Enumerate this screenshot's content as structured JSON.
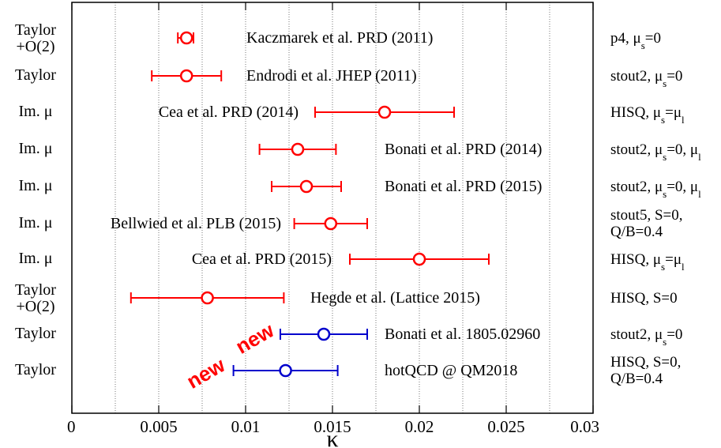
{
  "chart_data": {
    "type": "scatter",
    "xlabel": "κ",
    "xlim": [
      0,
      0.03
    ],
    "x_ticks": [
      "0",
      "0.005",
      "0.01",
      "0.015",
      "0.02",
      "0.025",
      "0.03"
    ],
    "grid": "vertical dotted at x = 0.0025 steps",
    "colors": {
      "previous": "#ff0000",
      "new": "#0000cc",
      "new_tag": "#ff0000"
    },
    "points": [
      {
        "method": "Taylor\n+O(2)",
        "label": "Kaczmarek et al. PRD (2011)",
        "setup": "p4, μ_s=0",
        "x": 0.0066,
        "err_low": 0.0061,
        "err_high": 0.007,
        "series": "previous"
      },
      {
        "method": "Taylor",
        "label": "Endrodi et al. JHEP (2011)",
        "setup": "stout2, μ_s=0",
        "x": 0.0066,
        "err_low": 0.0046,
        "err_high": 0.0086,
        "series": "previous"
      },
      {
        "method": "Im. μ",
        "label": "Cea et al. PRD (2014)",
        "setup": "HISQ, μ_s=μ_l",
        "x": 0.018,
        "err_low": 0.014,
        "err_high": 0.022,
        "series": "previous"
      },
      {
        "method": "Im. μ",
        "label": "Bonati et al. PRD (2014)",
        "setup": "stout2, μ_s=0, μ_l",
        "x": 0.013,
        "err_low": 0.0108,
        "err_high": 0.0152,
        "series": "previous"
      },
      {
        "method": "Im. μ",
        "label": "Bonati et al. PRD (2015)",
        "setup": "stout2, μ_s=0, μ_l",
        "x": 0.0135,
        "err_low": 0.0115,
        "err_high": 0.0155,
        "series": "previous"
      },
      {
        "method": "Im. μ",
        "label": "Bellwied et al. PLB (2015)",
        "setup": "stout5, S=0,\nQ/B=0.4",
        "x": 0.0149,
        "err_low": 0.0128,
        "err_high": 0.017,
        "series": "previous"
      },
      {
        "method": "Im. μ",
        "label": "Cea et al. PRD (2015)",
        "setup": "HISQ, μ_s=μ_l",
        "x": 0.02,
        "err_low": 0.016,
        "err_high": 0.024,
        "series": "previous"
      },
      {
        "method": "Taylor\n+O(2)",
        "label": "Hegde et al. (Lattice 2015)",
        "setup": "HISQ, S=0",
        "x": 0.0078,
        "err_low": 0.0034,
        "err_high": 0.0122,
        "series": "previous"
      },
      {
        "method": "Taylor",
        "label": "Bonati et al. 1805.02960",
        "setup": "stout2, μ_s=0",
        "x": 0.0145,
        "err_low": 0.012,
        "err_high": 0.017,
        "series": "new",
        "tag": "new"
      },
      {
        "method": "Taylor",
        "label": "hotQCD @ QM2018",
        "setup": "HISQ, S=0,\nQ/B=0.4",
        "x": 0.0123,
        "err_low": 0.0093,
        "err_high": 0.0153,
        "series": "new",
        "tag": "new"
      }
    ]
  }
}
